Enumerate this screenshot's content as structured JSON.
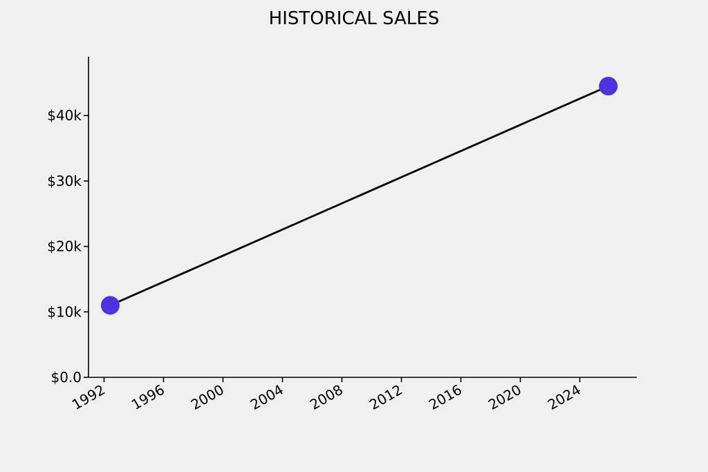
{
  "chart_data": {
    "type": "line",
    "title": "HISTORICAL SALES",
    "xlabel": "",
    "ylabel": "",
    "x_ticks": [
      "1992",
      "1996",
      "2000",
      "2004",
      "2008",
      "2012",
      "2016",
      "2020",
      "2024"
    ],
    "y_ticks": [
      "$0.0",
      "$10k",
      "$20k",
      "$30k",
      "$40k"
    ],
    "xlim": [
      "1990-12-15",
      "2027-11-01"
    ],
    "ylim": [
      0,
      49000
    ],
    "grid": false,
    "series": [
      {
        "x": [
          "1992-06-01",
          "2025-12-01"
        ],
        "values": [
          11000,
          44500
        ],
        "line_color": "#000000",
        "marker_color": "#4b33e0"
      }
    ]
  }
}
